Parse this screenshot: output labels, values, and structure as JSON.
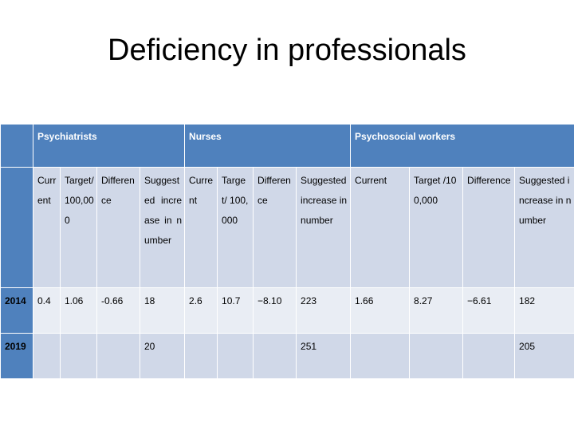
{
  "title": "Deficiency in professionals",
  "groups": [
    "Psychiatrists",
    "Nurses",
    "Psychosocial workers"
  ],
  "subheaders": [
    "Current",
    "Target/ 100,000",
    "Difference",
    "Suggested increase in number",
    "Current",
    "Target/ 100,000",
    "Difference",
    "Suggested increase in number",
    "Current",
    "Target /100,000",
    "Difference",
    "Suggested increase in number"
  ],
  "rows": [
    {
      "year": "2014",
      "cells": [
        "0.4",
        "1.06",
        "-0.66",
        "18",
        "2.6",
        "10.7",
        "−8.10",
        "223",
        "1.66",
        "8.27",
        "−6.61",
        "182"
      ]
    },
    {
      "year": "2019",
      "cells": [
        "",
        "",
        "",
        "20",
        "",
        "",
        "",
        "251",
        "",
        "",
        "",
        "205"
      ]
    }
  ]
}
